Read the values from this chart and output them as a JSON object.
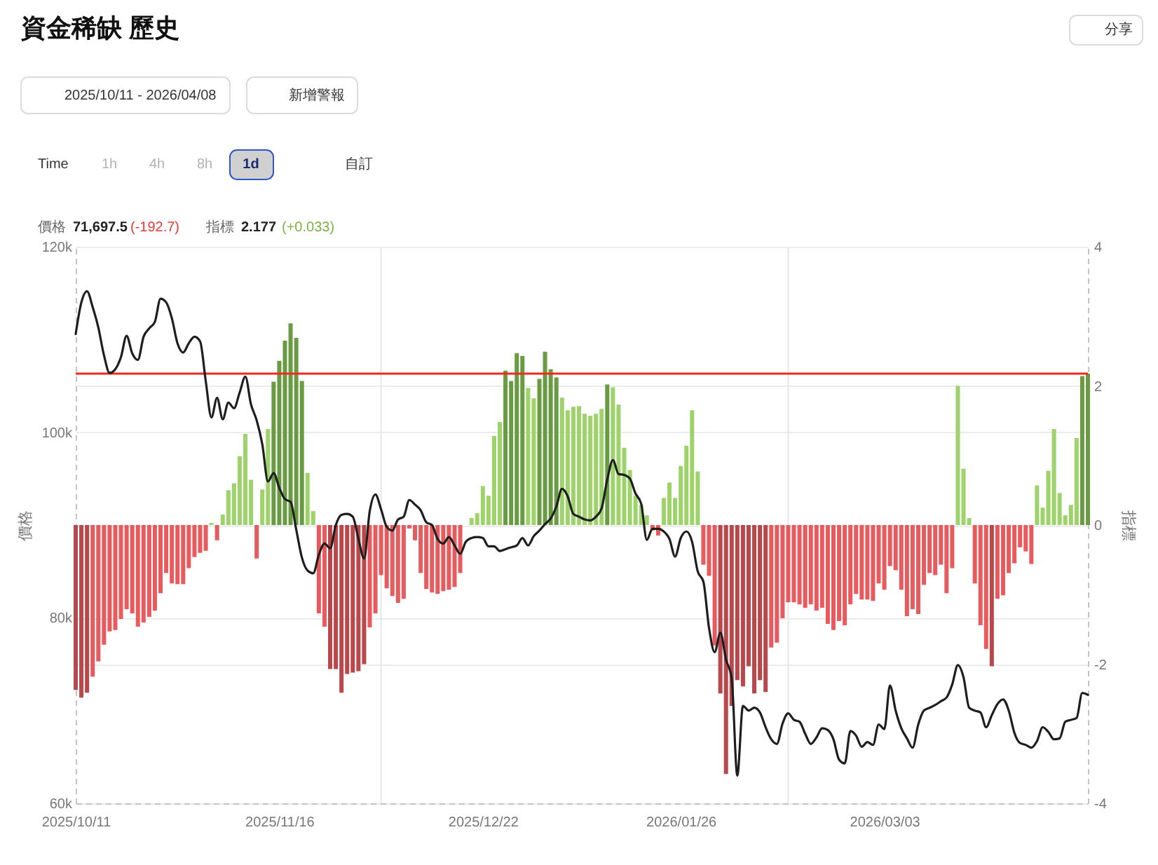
{
  "chart_data": {
    "type": "bar",
    "title": "資金稀缺 歷史",
    "ylabel": "價格",
    "y2label": "指標",
    "annotations": [
      "分享",
      "2025/10/11 - 2026/04/08",
      "新增警報",
      "Time",
      "1h",
      "4h",
      "8h",
      "1d",
      "自訂",
      "價格",
      "71,697.5",
      "(-192.7)",
      "指標",
      "2.177",
      "(+0.033)"
    ],
    "x": [
      "2025-10-11",
      "2025-10-12",
      "2025-10-13",
      "2025-10-14",
      "2025-10-15",
      "2025-10-16",
      "2025-10-17",
      "2025-10-18",
      "2025-10-19",
      "2025-10-20",
      "2025-10-21",
      "2025-10-22",
      "2025-10-23",
      "2025-10-24",
      "2025-10-25",
      "2025-10-26",
      "2025-10-27",
      "2025-10-28",
      "2025-10-29",
      "2025-10-30",
      "2025-10-31",
      "2025-11-01",
      "2025-11-02",
      "2025-11-03",
      "2025-11-04",
      "2025-11-05",
      "2025-11-06",
      "2025-11-07",
      "2025-11-08",
      "2025-11-09",
      "2025-11-10",
      "2025-11-11",
      "2025-11-12",
      "2025-11-13",
      "2025-11-14",
      "2025-11-15",
      "2025-11-16",
      "2025-11-17",
      "2025-11-18",
      "2025-11-19",
      "2025-11-20",
      "2025-11-21",
      "2025-11-22",
      "2025-11-23",
      "2025-11-24",
      "2025-11-25",
      "2025-11-26",
      "2025-11-27",
      "2025-11-28",
      "2025-11-29",
      "2025-11-30",
      "2025-12-01",
      "2025-12-02",
      "2025-12-03",
      "2025-12-04",
      "2025-12-05",
      "2025-12-06",
      "2025-12-07",
      "2025-12-08",
      "2025-12-09",
      "2025-12-10",
      "2025-12-11",
      "2025-12-12",
      "2025-12-13",
      "2025-12-14",
      "2025-12-15",
      "2025-12-16",
      "2025-12-17",
      "2025-12-18",
      "2025-12-19",
      "2025-12-20",
      "2025-12-21",
      "2025-12-22",
      "2025-12-23",
      "2025-12-24",
      "2025-12-25",
      "2025-12-26",
      "2025-12-27",
      "2025-12-28",
      "2025-12-29",
      "2025-12-30",
      "2025-12-31",
      "2026-01-01",
      "2026-01-02",
      "2026-01-03",
      "2026-01-04",
      "2026-01-05",
      "2026-01-06",
      "2026-01-07",
      "2026-01-08",
      "2026-01-09",
      "2026-01-10",
      "2026-01-11",
      "2026-01-12",
      "2026-01-13",
      "2026-01-14",
      "2026-01-15",
      "2026-01-16",
      "2026-01-17",
      "2026-01-18",
      "2026-01-19",
      "2026-01-20",
      "2026-01-21",
      "2026-01-22",
      "2026-01-23",
      "2026-01-24",
      "2026-01-25",
      "2026-01-26",
      "2026-01-27",
      "2026-01-28",
      "2026-01-29",
      "2026-01-30",
      "2026-01-31",
      "2026-02-01",
      "2026-02-02",
      "2026-02-03",
      "2026-02-04",
      "2026-02-05",
      "2026-02-06",
      "2026-02-07",
      "2026-02-08",
      "2026-02-09",
      "2026-02-10",
      "2026-02-11",
      "2026-02-12",
      "2026-02-13",
      "2026-02-14",
      "2026-02-15",
      "2026-02-16",
      "2026-02-17",
      "2026-02-18",
      "2026-02-19",
      "2026-02-20",
      "2026-02-21",
      "2026-02-22",
      "2026-02-23",
      "2026-02-24",
      "2026-02-25",
      "2026-02-26",
      "2026-02-27",
      "2026-02-28",
      "2026-03-01",
      "2026-03-02",
      "2026-03-03",
      "2026-03-04",
      "2026-03-05",
      "2026-03-06",
      "2026-03-07",
      "2026-03-08",
      "2026-03-09",
      "2026-03-10",
      "2026-03-11",
      "2026-03-12",
      "2026-03-13",
      "2026-03-14",
      "2026-03-15",
      "2026-03-16",
      "2026-03-17",
      "2026-03-18",
      "2026-03-19",
      "2026-03-20",
      "2026-03-21",
      "2026-03-22",
      "2026-03-23",
      "2026-03-24",
      "2026-03-25",
      "2026-03-26",
      "2026-03-27",
      "2026-03-28",
      "2026-03-29",
      "2026-03-30",
      "2026-03-31",
      "2026-04-01",
      "2026-04-02",
      "2026-04-03",
      "2026-04-04",
      "2026-04-05",
      "2026-04-06",
      "2026-04-07",
      "2026-04-08"
    ],
    "series": [
      {
        "axis": "y2",
        "values": [
          -2.37,
          -2.48,
          -2.41,
          -2.18,
          -1.96,
          -1.72,
          -1.53,
          -1.51,
          -1.35,
          -1.21,
          -1.27,
          -1.46,
          -1.4,
          -1.32,
          -1.23,
          -0.98,
          -0.69,
          -0.84,
          -0.85,
          -0.85,
          -0.62,
          -0.46,
          -0.4,
          -0.37,
          0.03,
          -0.22,
          0.15,
          0.5,
          0.6,
          0.99,
          1.31,
          0.65,
          -0.48,
          0.51,
          1.38,
          2.06,
          2.36,
          2.65,
          2.9,
          2.69,
          2.07,
          0.75,
          0.2,
          -1.27,
          -1.46,
          -2.07,
          -2.07,
          -2.41,
          -2.14,
          -2.12,
          -2.1,
          -2.0,
          -1.47,
          -1.27,
          -0.72,
          -0.91,
          -1.02,
          -1.12,
          -1.06,
          -0.05,
          -0.22,
          -0.69,
          -0.92,
          -0.97,
          -0.99,
          -0.95,
          -0.93,
          -0.89,
          -0.69,
          0,
          0.1,
          0.17,
          0.56,
          0.42,
          1.28,
          1.48,
          2.22,
          2.07,
          2.47,
          2.43,
          1.97,
          1.82,
          2.1,
          2.49,
          2.24,
          2.12,
          1.83,
          1.65,
          1.7,
          1.71,
          1.6,
          1.57,
          1.6,
          1.67,
          2.02,
          1.98,
          1.73,
          1.11,
          0.79,
          0.42,
          0.29,
          0.14,
          -0.08,
          -0.15,
          0.39,
          0.61,
          0.39,
          0.85,
          1.14,
          1.65,
          0.77,
          -0.57,
          -0.73,
          -1.73,
          -2.42,
          -3.58,
          -2.6,
          -2.23,
          -2.32,
          -2.03,
          -2.42,
          -2.23,
          -2.4,
          -1.76,
          -1.69,
          -1.34,
          -1.11,
          -1.11,
          -1.14,
          -1.19,
          -1.14,
          -1.23,
          -1.19,
          -1.42,
          -1.51,
          -1.38,
          -1.44,
          -1.14,
          -0.99,
          -1.07,
          -1.07,
          -1.09,
          -0.84,
          -0.93,
          -0.59,
          -0.65,
          -0.93,
          -1.31,
          -1.21,
          -1.28,
          -0.86,
          -0.69,
          -0.72,
          -0.57,
          -0.98,
          -0.62,
          2.0,
          0.81,
          0.1,
          -0.84,
          -1.44,
          -1.78,
          -2.03,
          -1.06,
          -1.01,
          -0.69,
          -0.55,
          -0.32,
          -0.38,
          -0.56,
          0.57,
          0.25,
          0.78,
          1.38,
          0.46,
          0.14,
          0.29,
          1.25,
          2.14,
          2.177
        ],
        "colors": [
          "#b8484c",
          "#b8484c",
          "#b8484c",
          "#e75a5e",
          "#e75a5e",
          "#e75a5e",
          "#e75a5e",
          "#e75a5e",
          "#e75a5e",
          "#e75a5e",
          "#e75a5e",
          "#e75a5e",
          "#e75a5e",
          "#e75a5e",
          "#e75a5e",
          "#e75a5e",
          "#e75a5e",
          "#e75a5e",
          "#e75a5e",
          "#e75a5e",
          "#e75a5e",
          "#e75a5e",
          "#e75a5e",
          "#e75a5e",
          "#9ed26a",
          "#e75a5e",
          "#9ed26a",
          "#9ed26a",
          "#9ed26a",
          "#9ed26a",
          "#9ed26a",
          "#9ed26a",
          "#e75a5e",
          "#9ed26a",
          "#9ed26a",
          "#6a9b44",
          "#6a9b44",
          "#6a9b44",
          "#6a9b44",
          "#6a9b44",
          "#6a9b44",
          "#9ed26a",
          "#9ed26a",
          "#e75a5e",
          "#e75a5e",
          "#b8484c",
          "#b8484c",
          "#b8484c",
          "#b8484c",
          "#b8484c",
          "#b8484c",
          "#b8484c",
          "#e75a5e",
          "#e75a5e",
          "#e75a5e",
          "#e75a5e",
          "#e75a5e",
          "#e75a5e",
          "#e75a5e",
          "#e75a5e",
          "#e75a5e",
          "#e75a5e",
          "#e75a5e",
          "#e75a5e",
          "#e75a5e",
          "#e75a5e",
          "#e75a5e",
          "#e75a5e",
          "#e75a5e",
          "#9ed26a",
          "#9ed26a",
          "#9ed26a",
          "#9ed26a",
          "#9ed26a",
          "#9ed26a",
          "#9ed26a",
          "#6a9b44",
          "#6a9b44",
          "#6a9b44",
          "#6a9b44",
          "#9ed26a",
          "#9ed26a",
          "#6a9b44",
          "#6a9b44",
          "#6a9b44",
          "#6a9b44",
          "#9ed26a",
          "#9ed26a",
          "#9ed26a",
          "#9ed26a",
          "#9ed26a",
          "#9ed26a",
          "#9ed26a",
          "#9ed26a",
          "#6a9b44",
          "#9ed26a",
          "#9ed26a",
          "#9ed26a",
          "#9ed26a",
          "#9ed26a",
          "#9ed26a",
          "#9ed26a",
          "#e75a5e",
          "#e75a5e",
          "#9ed26a",
          "#9ed26a",
          "#9ed26a",
          "#9ed26a",
          "#9ed26a",
          "#9ed26a",
          "#9ed26a",
          "#e75a5e",
          "#e75a5e",
          "#e75a5e",
          "#b8484c",
          "#b8484c",
          "#b8484c",
          "#b8484c",
          "#b8484c",
          "#b8484c",
          "#b8484c",
          "#b8484c",
          "#b8484c",
          "#e75a5e",
          "#e75a5e",
          "#e75a5e",
          "#e75a5e",
          "#e75a5e",
          "#e75a5e",
          "#e75a5e",
          "#e75a5e",
          "#e75a5e",
          "#e75a5e",
          "#e75a5e",
          "#e75a5e",
          "#e75a5e",
          "#e75a5e",
          "#e75a5e",
          "#e75a5e",
          "#e75a5e",
          "#e75a5e",
          "#e75a5e",
          "#e75a5e",
          "#e75a5e",
          "#e75a5e",
          "#e75a5e",
          "#e75a5e",
          "#e75a5e",
          "#e75a5e",
          "#e75a5e",
          "#e75a5e",
          "#e75a5e",
          "#e75a5e",
          "#e75a5e",
          "#e75a5e",
          "#e75a5e",
          "#9ed26a",
          "#9ed26a",
          "#9ed26a",
          "#e75a5e",
          "#e75a5e",
          "#e75a5e",
          "#b8484c",
          "#e75a5e",
          "#e75a5e",
          "#e75a5e",
          "#e75a5e",
          "#e75a5e",
          "#e75a5e",
          "#e75a5e",
          "#9ed26a",
          "#9ed26a",
          "#9ed26a",
          "#9ed26a",
          "#9ed26a",
          "#9ed26a",
          "#9ed26a",
          "#9ed26a",
          "#6a9b44",
          "#6a9b44"
        ]
      },
      {
        "type": "line",
        "color": "#1e1e1e",
        "values": [
          110600,
          114000,
          115200,
          113500,
          111300,
          108300,
          106400,
          106800,
          108100,
          110400,
          108500,
          107800,
          110300,
          111200,
          111900,
          114400,
          114000,
          112300,
          109600,
          108600,
          109600,
          110300,
          109800,
          105500,
          101600,
          103700,
          101400,
          103200,
          102600,
          104300,
          106000,
          103000,
          101300,
          98700,
          94700,
          95600,
          94000,
          92800,
          92500,
          89500,
          86500,
          85100,
          84800,
          86800,
          88000,
          87500,
          90000,
          91100,
          91200,
          90900,
          88500,
          86400,
          91500,
          93300,
          91700,
          89800,
          89400,
          90600,
          90900,
          92700,
          92200,
          91600,
          90300,
          90000,
          88500,
          88000,
          88700,
          87800,
          86900,
          88200,
          88600,
          88700,
          88600,
          87700,
          87700,
          87200,
          87400,
          87600,
          87800,
          88600,
          87800,
          88800,
          89400,
          90100,
          90700,
          92000,
          93900,
          93100,
          91200,
          90900,
          90600,
          90500,
          90900,
          91800,
          94900,
          97000,
          95500,
          95400,
          95000,
          93400,
          92300,
          88400,
          89600,
          89600,
          89300,
          88500,
          86600,
          88600,
          89300,
          88200,
          85000,
          83900,
          78900,
          76300,
          78400,
          75500,
          73500,
          63000,
          70500,
          70000,
          70300,
          69800,
          68200,
          66900,
          66400,
          68600,
          69700,
          69000,
          68800,
          67500,
          66400,
          67100,
          68100,
          67900,
          66900,
          64700,
          64300,
          67800,
          67300,
          66100,
          66600,
          66300,
          68500,
          68000,
          72700,
          70000,
          68100,
          67000,
          66000,
          68500,
          70000,
          70300,
          70600,
          71000,
          71400,
          72800,
          74900,
          73600,
          70300,
          70000,
          69800,
          68200,
          69500,
          70700,
          71200,
          70000,
          67600,
          66500,
          66300,
          66000,
          66700,
          68200,
          67700,
          66900,
          67000,
          68800,
          69000,
          69200,
          71900,
          71697.5
        ]
      }
    ],
    "xlim": [
      "2025-10-11",
      "2026-04-08"
    ],
    "xticks": [
      {
        "value": "2025-10-11",
        "label": "2025/10/11"
      },
      {
        "value": "2025-11-16",
        "label": "2025/11/16"
      },
      {
        "value": "2025-12-22",
        "label": "2025/12/22"
      },
      {
        "value": "2026-01-26",
        "label": "2026/01/26"
      },
      {
        "value": "2026-03-03",
        "label": "2026/03/03"
      }
    ],
    "ylim": [
      60000,
      120000
    ],
    "yticks": [
      {
        "value": 60000,
        "label": "60k"
      },
      {
        "value": 80000,
        "label": "80k"
      },
      {
        "value": 100000,
        "label": "100k"
      },
      {
        "value": 120000,
        "label": "120k"
      }
    ],
    "y2lim": [
      -4,
      4
    ],
    "y2ticks": [
      -4,
      -2,
      0,
      2,
      4
    ],
    "ref_lines": [
      {
        "axis": "x",
        "value": "2025-12-04",
        "color": "#e6e6e6"
      },
      {
        "axis": "x",
        "value": "2026-02-14",
        "color": "#e6e6e6"
      },
      {
        "axis": "y2",
        "value": 2.177,
        "color": "#ee2a1f"
      }
    ],
    "grid": "y"
  }
}
